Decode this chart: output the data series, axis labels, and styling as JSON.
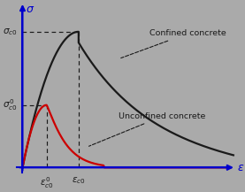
{
  "bg_color": "#aaaaaa",
  "confined_color": "#1a1a1a",
  "unconfined_color": "#cc0000",
  "axis_color": "#0000cc",
  "dashed_color": "#1a1a1a",
  "annotation_color": "#1a1a1a",
  "eps_c0_0": 0.18,
  "eps_c0": 0.42,
  "sigma_c0_0": 0.46,
  "sigma_c0": 1.0,
  "xlabel": "ε",
  "ylabel": "σ",
  "label_confined": "Confined concrete",
  "label_unconfined": "Unconfined concrete"
}
